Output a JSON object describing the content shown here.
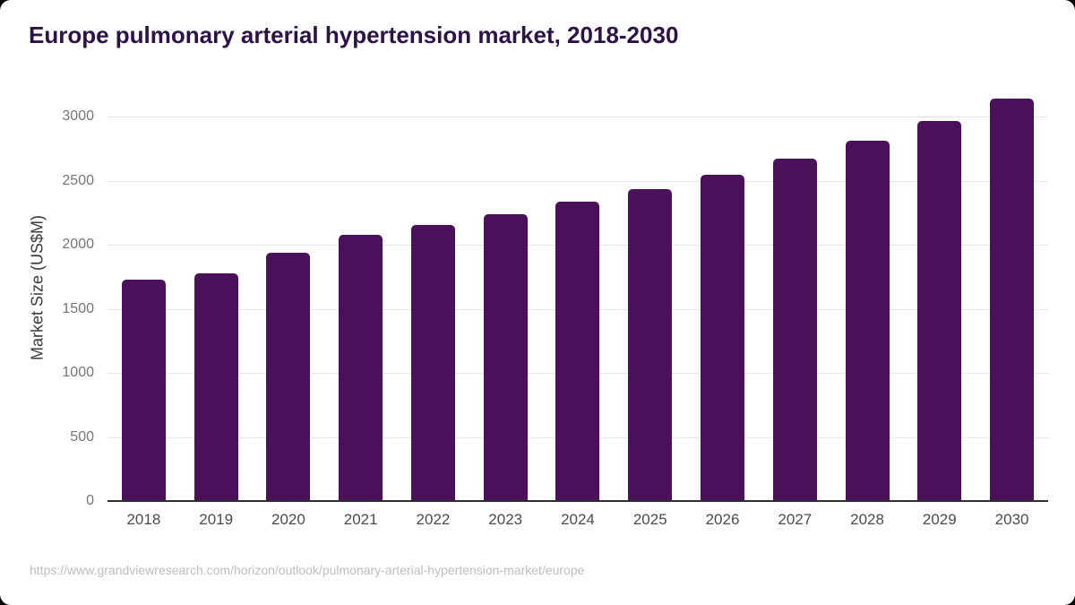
{
  "title": "Europe pulmonary arterial hypertension market, 2018-2030",
  "footer": {
    "source_url": "https://www.grandviewresearch.com/horizon/outlook/pulmonary-arterial-hypertension-market/europe"
  },
  "colors": {
    "bar": "#4A1059",
    "title_text": "#2D1245",
    "gridline": "#E7E7E7",
    "axis_line": "#2E2E2E",
    "y_tick_text": "#767676",
    "x_tick_text": "#4B4B4B",
    "footer_text": "#BDBDBD",
    "card_background": "#FFFFFF",
    "outer_background": "#000000"
  },
  "chart_data": {
    "type": "bar",
    "title": "Europe pulmonary arterial hypertension market, 2018-2030",
    "xlabel": "",
    "ylabel": "Market Size (US$M)",
    "categories": [
      "2018",
      "2019",
      "2020",
      "2021",
      "2022",
      "2023",
      "2024",
      "2025",
      "2026",
      "2027",
      "2028",
      "2029",
      "2030"
    ],
    "values": [
      1724,
      1777,
      1940,
      2080,
      2153,
      2239,
      2337,
      2431,
      2549,
      2671,
      2809,
      2966,
      3137
    ],
    "ylim": [
      0,
      3000
    ],
    "yticks": [
      0,
      500,
      1000,
      1500,
      2000,
      2500,
      3000
    ],
    "grid": "horizontal",
    "legend": "none",
    "bar_color": "#4A1059"
  }
}
